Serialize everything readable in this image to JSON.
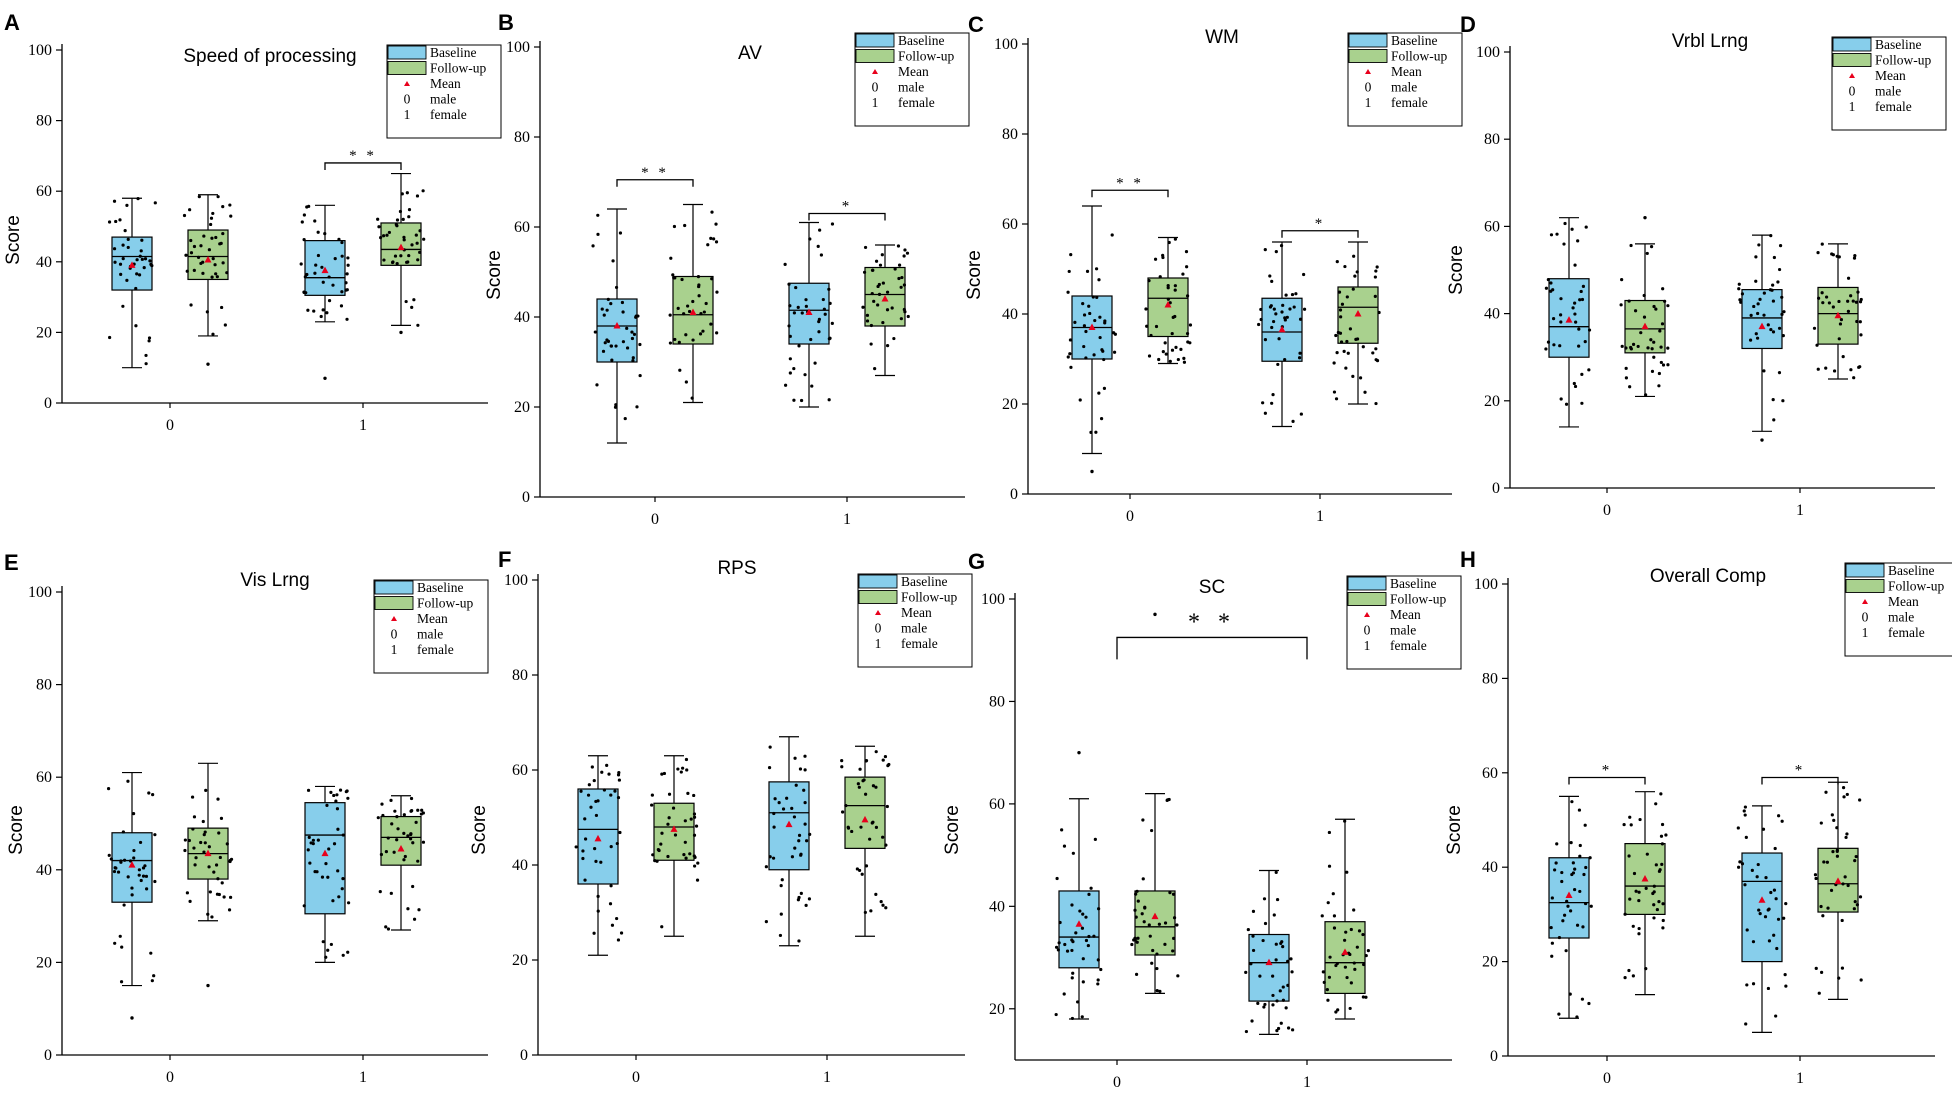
{
  "figure": {
    "legend": {
      "baseline": "Baseline",
      "followup": "Follow-up",
      "mean": "Mean",
      "male_code": "0",
      "male": "male",
      "female_code": "1",
      "female": "female"
    },
    "y_axis_label": "Score",
    "x_tick_labels": [
      "0",
      "1"
    ]
  },
  "colors": {
    "baseline": "#87CEEB",
    "followup": "#A9D18E",
    "mean": "#E8001C",
    "points": "#000000"
  },
  "chart_data": [
    {
      "panel": "A",
      "type": "box",
      "title": "Speed of processing",
      "ylabel": "Score",
      "ylim": [
        0,
        100
      ],
      "yticks": [
        0,
        20,
        40,
        60,
        80,
        100
      ],
      "categories": [
        "0",
        "1"
      ],
      "legend_position": "top-right",
      "series": [
        {
          "name": "Baseline",
          "boxes": [
            {
              "min": 10,
              "q1": 32,
              "median": 41.5,
              "q3": 47,
              "max": 58,
              "mean": 39
            },
            {
              "min": 23,
              "q1": 30.5,
              "median": 35.5,
              "q3": 46,
              "max": 56,
              "mean": 37.5
            }
          ],
          "outliers": [
            [],
            [
              7
            ]
          ]
        },
        {
          "name": "Follow-up",
          "boxes": [
            {
              "min": 19,
              "q1": 35,
              "median": 41.5,
              "q3": 49,
              "max": 59,
              "mean": 40.5
            },
            {
              "min": 22,
              "q1": 39,
              "median": 43.5,
              "q3": 51,
              "max": 65,
              "mean": 44
            }
          ],
          "outliers": [
            [
              11
            ],
            [
              20
            ]
          ]
        }
      ],
      "significance": [
        {
          "group": "1",
          "label": "* *",
          "y": 68
        }
      ]
    },
    {
      "panel": "B",
      "type": "box",
      "title": "AV",
      "ylabel": "Score",
      "ylim": [
        0,
        100
      ],
      "yticks": [
        0,
        20,
        40,
        60,
        80,
        100
      ],
      "categories": [
        "0",
        "1"
      ],
      "legend_position": "top-right",
      "series": [
        {
          "name": "Baseline",
          "boxes": [
            {
              "min": 12,
              "q1": 30,
              "median": 38,
              "q3": 44,
              "max": 64,
              "mean": 38
            },
            {
              "min": 20,
              "q1": 34,
              "median": 41.5,
              "q3": 47.5,
              "max": 61,
              "mean": 41
            }
          ],
          "outliers": [
            [],
            []
          ]
        },
        {
          "name": "Follow-up",
          "boxes": [
            {
              "min": 21,
              "q1": 34,
              "median": 40.5,
              "q3": 49,
              "max": 65,
              "mean": 41
            },
            {
              "min": 27,
              "q1": 38,
              "median": 45,
              "q3": 51,
              "max": 56,
              "mean": 44
            }
          ],
          "outliers": [
            [],
            []
          ]
        }
      ],
      "significance": [
        {
          "group": "0",
          "label": "* *",
          "y": 70.5
        },
        {
          "group": "1",
          "label": "*",
          "y": 63
        }
      ]
    },
    {
      "panel": "C",
      "type": "box",
      "title": "WM",
      "ylabel": "Score",
      "ylim": [
        0,
        100
      ],
      "yticks": [
        0,
        20,
        40,
        60,
        80,
        100
      ],
      "categories": [
        "0",
        "1"
      ],
      "legend_position": "top-right",
      "series": [
        {
          "name": "Baseline",
          "boxes": [
            {
              "min": 9,
              "q1": 30,
              "median": 37,
              "q3": 44,
              "max": 64,
              "mean": 37
            },
            {
              "min": 15,
              "q1": 29.5,
              "median": 36,
              "q3": 43.5,
              "max": 56,
              "mean": 36.5
            }
          ],
          "outliers": [
            [
              5
            ],
            []
          ]
        },
        {
          "name": "Follow-up",
          "boxes": [
            {
              "min": 29,
              "q1": 35,
              "median": 43.5,
              "q3": 48,
              "max": 57,
              "mean": 42
            },
            {
              "min": 20,
              "q1": 33.5,
              "median": 41.5,
              "q3": 46,
              "max": 56,
              "mean": 40
            }
          ],
          "outliers": [
            [],
            []
          ]
        }
      ],
      "significance": [
        {
          "group": "0",
          "label": "* *",
          "y": 67.5
        },
        {
          "group": "1",
          "label": "*",
          "y": 58.5
        }
      ]
    },
    {
      "panel": "D",
      "type": "box",
      "title": "Vrbl Lrng",
      "ylabel": "Score",
      "ylim": [
        0,
        100
      ],
      "yticks": [
        0,
        20,
        40,
        60,
        80,
        100
      ],
      "categories": [
        "0",
        "1"
      ],
      "legend_position": "top-right",
      "series": [
        {
          "name": "Baseline",
          "boxes": [
            {
              "min": 14,
              "q1": 30,
              "median": 37,
              "q3": 48,
              "max": 62,
              "mean": 38.5
            },
            {
              "min": 13,
              "q1": 32,
              "median": 39,
              "q3": 45.5,
              "max": 58,
              "mean": 37
            }
          ],
          "outliers": [
            [],
            [
              11
            ]
          ]
        },
        {
          "name": "Follow-up",
          "boxes": [
            {
              "min": 21,
              "q1": 31,
              "median": 36.5,
              "q3": 43,
              "max": 56,
              "mean": 37
            },
            {
              "min": 25,
              "q1": 33,
              "median": 40,
              "q3": 46,
              "max": 56,
              "mean": 39.5
            }
          ],
          "outliers": [
            [
              62
            ],
            []
          ]
        }
      ],
      "significance": []
    },
    {
      "panel": "E",
      "type": "box",
      "title": "Vis Lrng",
      "ylabel": "Score",
      "ylim": [
        0,
        100
      ],
      "yticks": [
        0,
        20,
        40,
        60,
        80,
        100
      ],
      "categories": [
        "0",
        "1"
      ],
      "legend_position": "top-right",
      "series": [
        {
          "name": "Baseline",
          "boxes": [
            {
              "min": 15,
              "q1": 33,
              "median": 42,
              "q3": 48,
              "max": 61,
              "mean": 41
            },
            {
              "min": 20,
              "q1": 30.5,
              "median": 47.5,
              "q3": 54.5,
              "max": 58,
              "mean": 43.5
            }
          ],
          "outliers": [
            [
              8
            ],
            []
          ]
        },
        {
          "name": "Follow-up",
          "boxes": [
            {
              "min": 29,
              "q1": 38,
              "median": 43.5,
              "q3": 49,
              "max": 63,
              "mean": 43.5
            },
            {
              "min": 27,
              "q1": 41,
              "median": 47,
              "q3": 51.5,
              "max": 56,
              "mean": 44.5
            }
          ],
          "outliers": [
            [
              15
            ],
            []
          ]
        }
      ],
      "significance": []
    },
    {
      "panel": "F",
      "type": "box",
      "title": "RPS",
      "ylabel": "Score",
      "ylim": [
        0,
        100
      ],
      "yticks": [
        0,
        20,
        40,
        60,
        80,
        100
      ],
      "categories": [
        "0",
        "1"
      ],
      "legend_position": "top-right",
      "series": [
        {
          "name": "Baseline",
          "boxes": [
            {
              "min": 21,
              "q1": 36,
              "median": 47.5,
              "q3": 56,
              "max": 63,
              "mean": 45.5
            },
            {
              "min": 23,
              "q1": 39,
              "median": 51,
              "q3": 57.5,
              "max": 67,
              "mean": 48.5
            }
          ],
          "outliers": [
            [],
            []
          ]
        },
        {
          "name": "Follow-up",
          "boxes": [
            {
              "min": 25,
              "q1": 41,
              "median": 48,
              "q3": 53,
              "max": 63,
              "mean": 47.5
            },
            {
              "min": 25,
              "q1": 43.5,
              "median": 52.5,
              "q3": 58.5,
              "max": 65,
              "mean": 49.5
            }
          ],
          "outliers": [
            [],
            []
          ]
        }
      ],
      "significance": []
    },
    {
      "panel": "G",
      "type": "box",
      "title": "SC",
      "ylabel": "Score",
      "ylim": [
        10,
        100
      ],
      "yticks": [
        20,
        40,
        60,
        80,
        100
      ],
      "categories": [
        "0",
        "1"
      ],
      "legend_position": "top-right",
      "series": [
        {
          "name": "Baseline",
          "boxes": [
            {
              "min": 18,
              "q1": 28,
              "median": 34,
              "q3": 43,
              "max": 61,
              "mean": 36.5
            },
            {
              "min": 15,
              "q1": 21.5,
              "median": 29,
              "q3": 34.5,
              "max": 47,
              "mean": 29
            }
          ],
          "outliers": [
            [
              70
            ],
            []
          ]
        },
        {
          "name": "Follow-up",
          "boxes": [
            {
              "min": 23,
              "q1": 30.5,
              "median": 36,
              "q3": 43,
              "max": 62,
              "mean": 38
            },
            {
              "min": 18,
              "q1": 23,
              "median": 29,
              "q3": 37,
              "max": 57,
              "mean": 31
            }
          ],
          "outliers": [
            [
              97
            ],
            []
          ]
        }
      ],
      "significance": [
        {
          "group": "between",
          "label": "* *",
          "y": 92.5
        }
      ]
    },
    {
      "panel": "H",
      "type": "box",
      "title": "Overall Comp",
      "ylabel": "Score",
      "ylim": [
        0,
        100
      ],
      "yticks": [
        0,
        20,
        40,
        60,
        80,
        100
      ],
      "categories": [
        "0",
        "1"
      ],
      "legend_position": "top-right",
      "series": [
        {
          "name": "Baseline",
          "boxes": [
            {
              "min": 8,
              "q1": 25,
              "median": 32.5,
              "q3": 42,
              "max": 55,
              "mean": 34
            },
            {
              "min": 5,
              "q1": 20,
              "median": 37,
              "q3": 43,
              "max": 53,
              "mean": 33
            }
          ],
          "outliers": [
            [],
            []
          ]
        },
        {
          "name": "Follow-up",
          "boxes": [
            {
              "min": 13,
              "q1": 30,
              "median": 36,
              "q3": 45,
              "max": 56,
              "mean": 37.5
            },
            {
              "min": 12,
              "q1": 30.5,
              "median": 36.5,
              "q3": 44,
              "max": 58,
              "mean": 37
            }
          ],
          "outliers": [
            [],
            []
          ]
        }
      ],
      "significance": [
        {
          "group": "0",
          "label": "*",
          "y": 59
        },
        {
          "group": "1",
          "label": "*",
          "y": 59
        }
      ]
    }
  ]
}
